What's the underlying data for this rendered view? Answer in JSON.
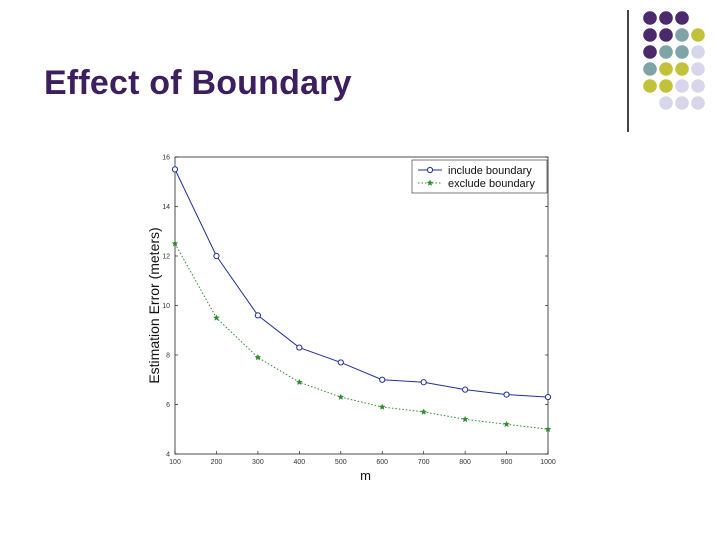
{
  "slide": {
    "title": "Effect of Boundary",
    "accent_colors": {
      "purple": "#4a2a6a",
      "teal": "#7fa4a8",
      "olive": "#c2c23a",
      "lavender": "#d8d6ea"
    }
  },
  "chart_data": {
    "type": "line",
    "title": "",
    "xlabel": "m",
    "ylabel": "Estimation Error (meters)",
    "x": [
      100,
      200,
      300,
      400,
      500,
      600,
      700,
      800,
      900,
      1000
    ],
    "x_ticks": [
      "100",
      "200",
      "300",
      "400",
      "500",
      "600",
      "700",
      "800",
      "900",
      "1000"
    ],
    "y_ticks": [
      "4",
      "6",
      "8",
      "10",
      "12",
      "14",
      "16"
    ],
    "xlim": [
      100,
      1000
    ],
    "ylim": [
      4,
      16
    ],
    "grid": false,
    "legend_position": "top-right",
    "series": [
      {
        "name": "include boundary",
        "color": "#1f2f9a",
        "line_style": "solid",
        "marker": "circle",
        "values": [
          15.5,
          12.0,
          9.6,
          8.3,
          7.7,
          7.0,
          6.9,
          6.6,
          6.4,
          6.3
        ]
      },
      {
        "name": "exclude boundary",
        "color": "#2e8b2e",
        "line_style": "dotted",
        "marker": "star",
        "values": [
          12.5,
          9.5,
          7.9,
          6.9,
          6.3,
          5.9,
          5.7,
          5.4,
          5.2,
          5.0
        ]
      }
    ]
  }
}
